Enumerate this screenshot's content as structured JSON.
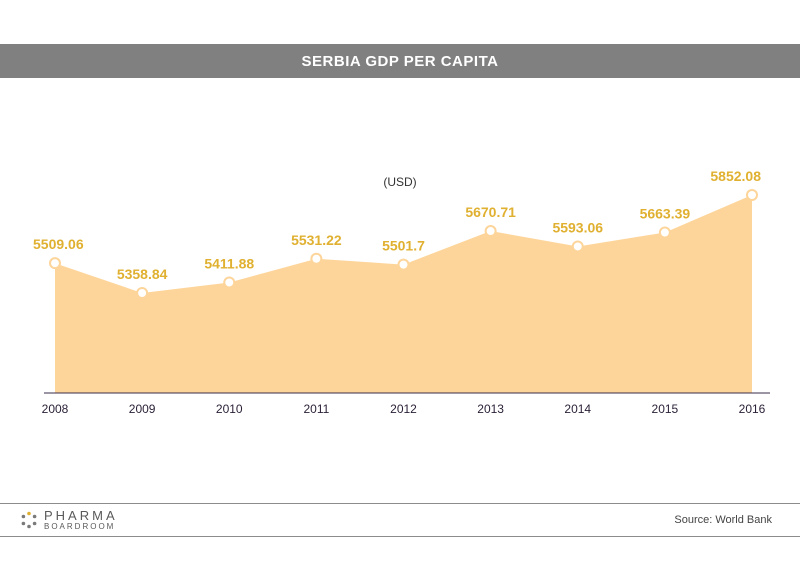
{
  "header": {
    "title": "SERBIA GDP PER CAPITA"
  },
  "chart_data": {
    "type": "area",
    "unit_label": "(USD)",
    "x": [
      "2008",
      "2009",
      "2010",
      "2011",
      "2012",
      "2013",
      "2014",
      "2015",
      "2016"
    ],
    "series": [
      {
        "values": [
          5509.06,
          5358.84,
          5411.88,
          5531.22,
          5501.7,
          5670.71,
          5593.06,
          5663.39,
          5852.08
        ]
      }
    ],
    "data_labels": [
      "5509.06",
      "5358.84",
      "5411.88",
      "5531.22",
      "5501.7",
      "5670.71",
      "5593.06",
      "5663.39",
      "5852.08"
    ],
    "grid": false,
    "colors": {
      "fill": "#FDD59A",
      "label": "#E0B030",
      "marker": "#FFFFFF"
    }
  },
  "footer": {
    "logo_top": "PHARMA",
    "logo_bottom": "BOARDROOM",
    "source": "Source: World Bank"
  }
}
